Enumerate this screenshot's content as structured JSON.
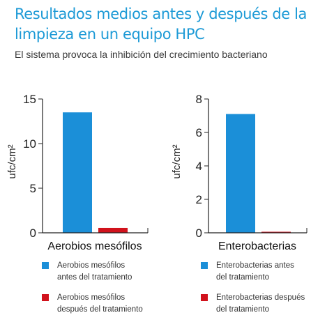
{
  "header": {
    "title_line1": "Resultados medios antes y después de la",
    "title_line2": "limpieza en un equipo HPC",
    "subtitle": "El sistema provoca la inhibición del crecimiento bacteriano"
  },
  "colors": {
    "before": "#1b8fd8",
    "after": "#d1121c",
    "axis": "#222222",
    "title": "#1d9ad6"
  },
  "chart_data": [
    {
      "type": "bar",
      "xlabel": "Aerobios mesófilos",
      "ylabel": "ufc/cm²",
      "ylim": [
        0,
        15
      ],
      "yticks": [
        0,
        5,
        10,
        15
      ],
      "categories": [
        "antes",
        "después"
      ],
      "series": [
        {
          "name": "Aerobios mesófilos antes del tratamiento",
          "value": 13.5,
          "color": "#1b8fd8"
        },
        {
          "name": "Aerobios mesófilos después del tratamiento",
          "value": 0.55,
          "color": "#d1121c"
        }
      ]
    },
    {
      "type": "bar",
      "xlabel": "Enterobacterias",
      "ylabel": "ufc/cm²",
      "ylim": [
        0,
        8
      ],
      "yticks": [
        0,
        2,
        4,
        6,
        8
      ],
      "categories": [
        "antes",
        "después"
      ],
      "series": [
        {
          "name": "Enterobacterias antes del tratamiento",
          "value": 7.1,
          "color": "#1b8fd8"
        },
        {
          "name": "Enterobacterias después del tratamiento",
          "value": 0.05,
          "color": "#d1121c"
        }
      ]
    }
  ],
  "legend": [
    {
      "items": [
        {
          "line1": "Aerobios mesófilos",
          "line2": "antes del tratamiento",
          "color": "#1b8fd8"
        },
        {
          "line1": "Aerobios mesófilos",
          "line2": "después del tratamiento",
          "color": "#d1121c"
        }
      ]
    },
    {
      "items": [
        {
          "line1": "Enterobacterias antes",
          "line2": "del tratamiento",
          "color": "#1b8fd8"
        },
        {
          "line1": "Enterobacterias después",
          "line2": "del tratamiento",
          "color": "#d1121c"
        }
      ]
    }
  ]
}
